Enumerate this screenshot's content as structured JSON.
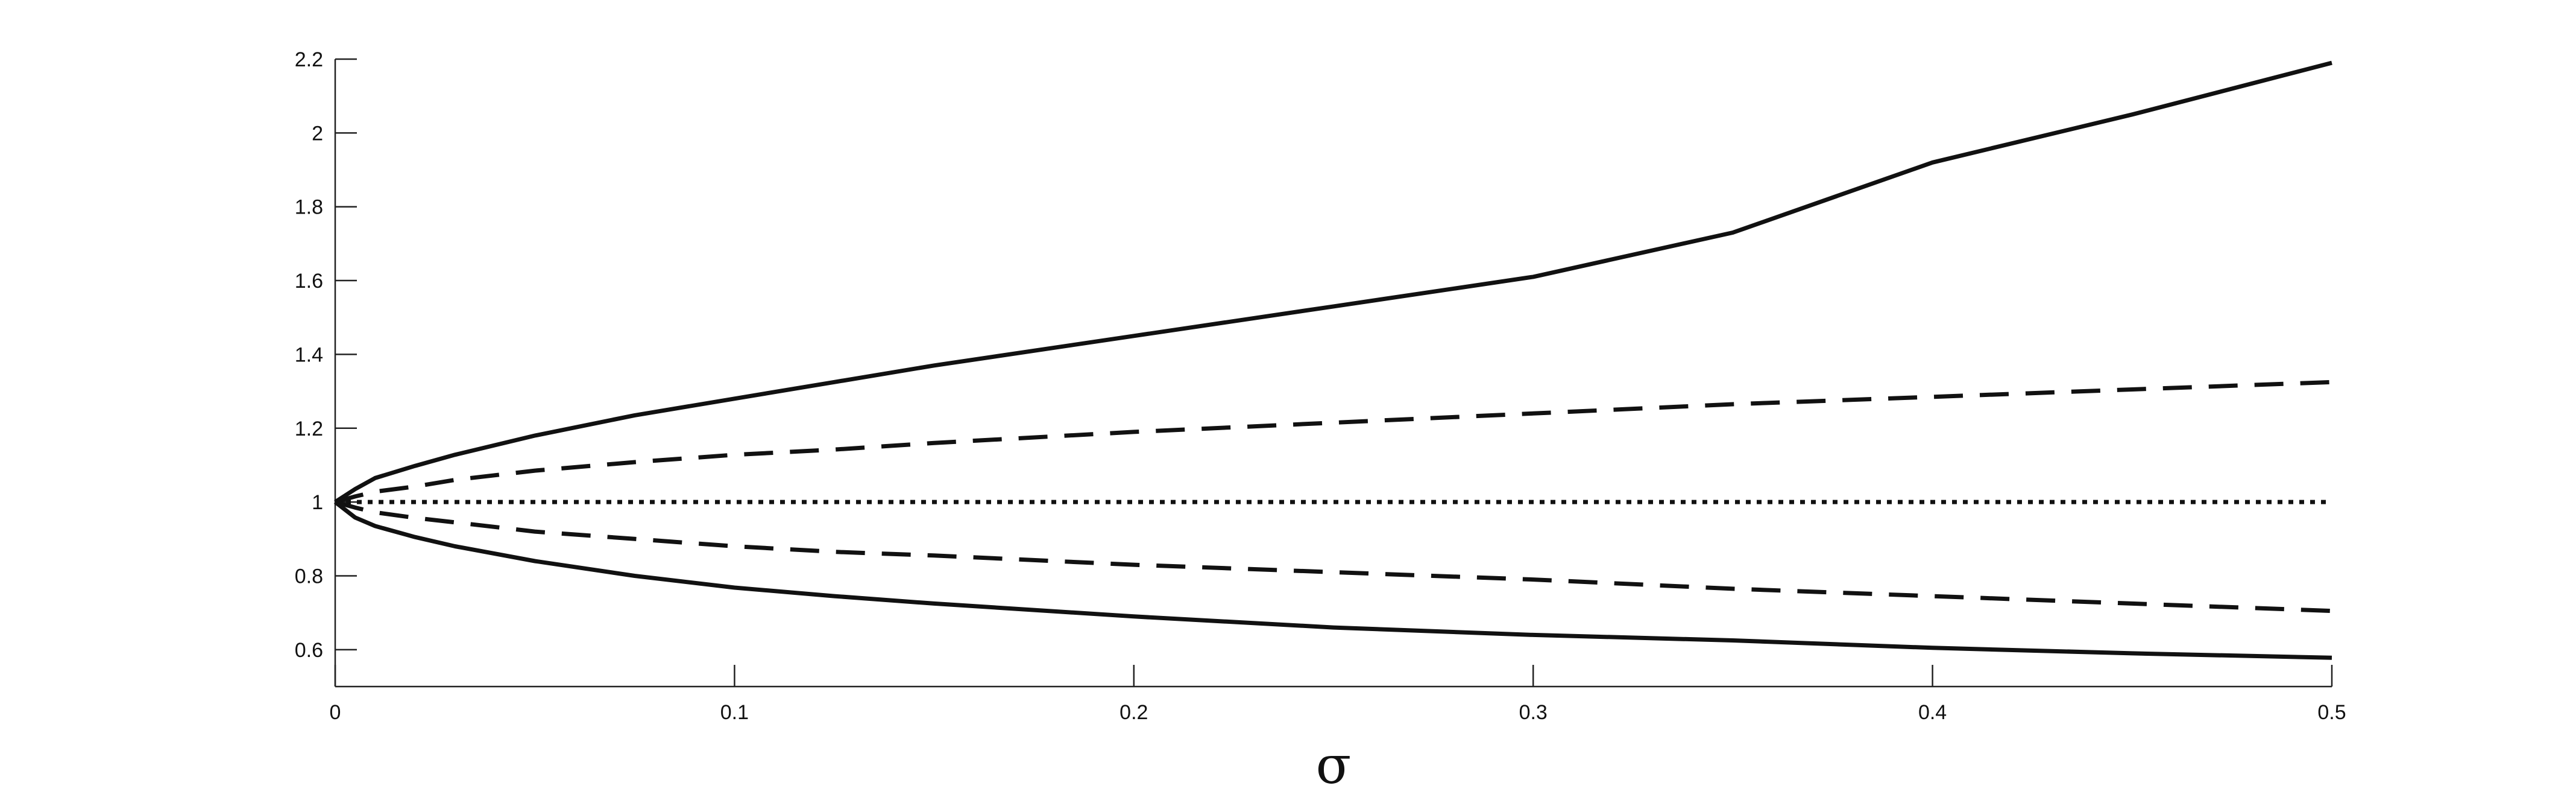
{
  "chart_data": {
    "type": "line",
    "title": "",
    "xlabel": "σ",
    "ylabel": "",
    "xlim": [
      0,
      0.5
    ],
    "ylim": [
      0.5,
      2.2
    ],
    "grid": false,
    "legend": "none",
    "x_ticks": [
      0,
      0.1,
      0.2,
      0.3,
      0.4,
      0.5
    ],
    "x_tick_labels": [
      "0",
      "0.1",
      "0.2",
      "0.3",
      "0.4",
      "0.5"
    ],
    "y_ticks": [
      0.6,
      0.8,
      1,
      1.2,
      1.4,
      1.6,
      1.8,
      2,
      2.2
    ],
    "y_tick_labels": [
      "0.6",
      "0.8",
      "1",
      "1.2",
      "1.4",
      "1.6",
      "1.8",
      "2",
      "2.2"
    ],
    "x": [
      0,
      0.005,
      0.01,
      0.02,
      0.03,
      0.05,
      0.075,
      0.1,
      0.125,
      0.15,
      0.2,
      0.25,
      0.3,
      0.35,
      0.4,
      0.45,
      0.5
    ],
    "series": [
      {
        "style": "solid",
        "values": [
          1.0,
          1.035,
          1.065,
          1.098,
          1.128,
          1.18,
          1.235,
          1.28,
          1.325,
          1.37,
          1.45,
          1.53,
          1.61,
          1.73,
          1.92,
          2.05,
          2.19
        ]
      },
      {
        "style": "dashed",
        "values": [
          1.0,
          1.015,
          1.028,
          1.042,
          1.06,
          1.085,
          1.108,
          1.128,
          1.142,
          1.16,
          1.19,
          1.215,
          1.24,
          1.265,
          1.285,
          1.305,
          1.325
        ]
      },
      {
        "style": "dotted",
        "values": [
          1.0,
          1.0,
          1.0,
          1.0,
          1.0,
          1.0,
          1.0,
          1.0,
          1.0,
          1.0,
          1.0,
          1.0,
          1.0,
          1.0,
          1.0,
          1.0,
          1.0
        ]
      },
      {
        "style": "dashed",
        "values": [
          1.0,
          0.985,
          0.972,
          0.957,
          0.945,
          0.92,
          0.9,
          0.88,
          0.865,
          0.855,
          0.83,
          0.81,
          0.79,
          0.765,
          0.745,
          0.725,
          0.705
        ]
      },
      {
        "style": "solid",
        "values": [
          1.0,
          0.958,
          0.935,
          0.905,
          0.88,
          0.84,
          0.8,
          0.768,
          0.745,
          0.725,
          0.69,
          0.66,
          0.64,
          0.625,
          0.605,
          0.59,
          0.578
        ]
      }
    ]
  }
}
